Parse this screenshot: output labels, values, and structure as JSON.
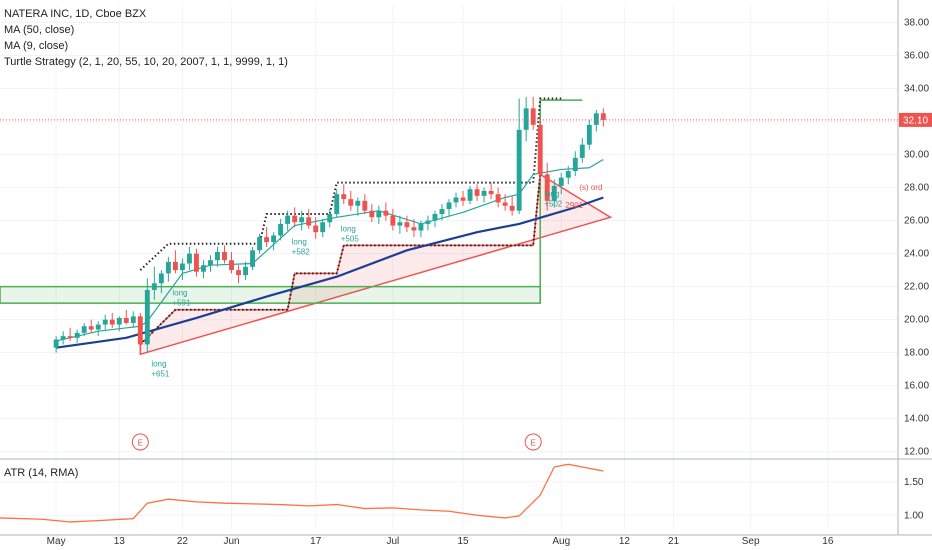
{
  "legend": {
    "symbol": "NATERA INC, 1D, Cboe BZX",
    "ma50": "MA (50, close)",
    "ma9": "MA (9, close)",
    "turtle": "Turtle Strategy (2, 1, 20, 55, 10, 20, 2007, 1, 1, 9999, 1, 1)"
  },
  "atr_legend": "ATR (14, RMA)",
  "last_price": "32.10",
  "earnings_markers": [
    "E",
    "E"
  ],
  "colors": {
    "up": "#26a69a",
    "down": "#ef5350",
    "ma50": "#1c3f94",
    "ma9": "#26a69a",
    "channel": "#222222",
    "green_box": "#4caf50",
    "red_box": "#ef5350",
    "atr": "#ff7043"
  },
  "chart_data": [
    {
      "type": "candlestick",
      "title": "NATERA INC, 1D, Cboe BZX",
      "y_ticks": [
        "12.00",
        "14.00",
        "16.00",
        "18.00",
        "20.00",
        "22.00",
        "24.00",
        "26.00",
        "28.00",
        "30.00",
        "32.00",
        "34.00",
        "36.00",
        "38.00"
      ],
      "ylim": [
        11.8,
        39.0
      ],
      "x_ticks": [
        "May",
        "13",
        "22",
        "Jun",
        "17",
        "Jul",
        "15",
        "Aug",
        "12",
        "21",
        "Sep",
        "16"
      ],
      "x_tick_index": [
        0,
        9,
        18,
        25,
        37,
        48,
        58,
        72,
        81,
        88,
        99,
        110
      ],
      "xlim": [
        -8,
        120
      ],
      "ohlc": [
        [
          18.3,
          19.0,
          18.0,
          18.8
        ],
        [
          18.8,
          19.3,
          18.5,
          19.0
        ],
        [
          19.0,
          19.5,
          18.7,
          18.9
        ],
        [
          18.9,
          19.4,
          18.6,
          19.2
        ],
        [
          19.2,
          19.8,
          19.0,
          19.6
        ],
        [
          19.6,
          20.0,
          19.2,
          19.4
        ],
        [
          19.4,
          19.9,
          19.0,
          19.7
        ],
        [
          19.7,
          20.3,
          19.4,
          20.0
        ],
        [
          20.0,
          20.4,
          19.5,
          19.7
        ],
        [
          19.7,
          20.2,
          19.3,
          20.1
        ],
        [
          20.1,
          20.6,
          19.7,
          19.8
        ],
        [
          19.8,
          20.5,
          19.5,
          20.2
        ],
        [
          20.2,
          20.4,
          18.2,
          18.5
        ],
        [
          18.5,
          22.5,
          18.0,
          21.8
        ],
        [
          21.8,
          23.2,
          21.2,
          22.2
        ],
        [
          22.2,
          23.0,
          21.6,
          22.8
        ],
        [
          22.8,
          23.8,
          22.3,
          23.5
        ],
        [
          23.5,
          24.2,
          22.8,
          23.0
        ],
        [
          23.0,
          23.7,
          22.4,
          23.4
        ],
        [
          23.4,
          24.4,
          23.0,
          24.0
        ],
        [
          24.0,
          24.3,
          22.6,
          22.9
        ],
        [
          22.9,
          23.6,
          22.5,
          23.3
        ],
        [
          23.3,
          23.9,
          22.9,
          23.6
        ],
        [
          23.6,
          24.4,
          23.2,
          24.1
        ],
        [
          24.1,
          24.5,
          23.4,
          23.6
        ],
        [
          23.6,
          24.1,
          22.8,
          23.0
        ],
        [
          23.0,
          23.3,
          22.2,
          22.7
        ],
        [
          22.7,
          23.5,
          22.4,
          23.2
        ],
        [
          23.2,
          24.4,
          23.0,
          24.2
        ],
        [
          24.2,
          25.2,
          24.0,
          25.0
        ],
        [
          25.0,
          25.6,
          24.4,
          24.7
        ],
        [
          24.7,
          25.3,
          24.2,
          25.1
        ],
        [
          25.1,
          26.1,
          24.8,
          25.8
        ],
        [
          25.8,
          26.6,
          25.4,
          26.3
        ],
        [
          26.3,
          26.8,
          25.6,
          25.9
        ],
        [
          25.9,
          26.6,
          25.4,
          26.2
        ],
        [
          26.2,
          26.7,
          25.5,
          25.7
        ],
        [
          25.7,
          26.2,
          24.9,
          25.3
        ],
        [
          25.3,
          26.1,
          25.0,
          25.9
        ],
        [
          25.9,
          26.7,
          25.6,
          26.4
        ],
        [
          26.4,
          27.9,
          26.2,
          27.6
        ],
        [
          27.6,
          28.2,
          27.0,
          27.3
        ],
        [
          27.3,
          27.8,
          26.6,
          26.9
        ],
        [
          26.9,
          27.4,
          26.3,
          27.2
        ],
        [
          27.2,
          27.6,
          26.4,
          26.6
        ],
        [
          26.6,
          27.0,
          25.9,
          26.2
        ],
        [
          26.2,
          26.9,
          25.8,
          26.6
        ],
        [
          26.6,
          27.1,
          26.0,
          26.3
        ],
        [
          26.3,
          26.7,
          25.4,
          25.7
        ],
        [
          25.7,
          26.3,
          25.2,
          25.9
        ],
        [
          25.9,
          26.3,
          25.3,
          25.6
        ],
        [
          25.6,
          26.1,
          25.0,
          25.4
        ],
        [
          25.4,
          26.0,
          25.0,
          25.8
        ],
        [
          25.8,
          26.3,
          25.4,
          26.0
        ],
        [
          26.0,
          26.6,
          25.6,
          26.4
        ],
        [
          26.4,
          27.0,
          26.0,
          26.7
        ],
        [
          26.7,
          27.3,
          26.3,
          27.1
        ],
        [
          27.1,
          27.7,
          26.8,
          27.4
        ],
        [
          27.4,
          27.8,
          26.9,
          27.2
        ],
        [
          27.2,
          28.1,
          27.0,
          27.9
        ],
        [
          27.9,
          28.2,
          27.2,
          27.5
        ],
        [
          27.5,
          28.0,
          27.1,
          27.8
        ],
        [
          27.8,
          28.3,
          27.3,
          27.6
        ],
        [
          27.6,
          28.0,
          26.8,
          27.1
        ],
        [
          27.1,
          27.6,
          26.6,
          26.9
        ],
        [
          26.9,
          27.5,
          26.3,
          26.6
        ],
        [
          26.6,
          33.4,
          26.4,
          31.5
        ],
        [
          31.5,
          33.5,
          30.8,
          32.8
        ],
        [
          32.8,
          33.5,
          31.5,
          31.8
        ],
        [
          31.8,
          32.2,
          28.3,
          28.8
        ],
        [
          28.8,
          29.5,
          26.6,
          27.2
        ],
        [
          27.2,
          28.5,
          26.8,
          28.1
        ],
        [
          28.1,
          28.9,
          27.6,
          28.6
        ],
        [
          28.6,
          29.3,
          28.2,
          29.0
        ],
        [
          29.0,
          30.2,
          28.7,
          29.8
        ],
        [
          29.8,
          31.0,
          29.5,
          30.6
        ],
        [
          30.6,
          32.1,
          30.3,
          31.8
        ],
        [
          31.8,
          32.7,
          31.4,
          32.5
        ],
        [
          32.5,
          32.8,
          31.7,
          32.1
        ]
      ],
      "ma50": [
        [
          0,
          18.3
        ],
        [
          10,
          18.9
        ],
        [
          20,
          20.1
        ],
        [
          30,
          21.4
        ],
        [
          40,
          22.6
        ],
        [
          50,
          24.2
        ],
        [
          60,
          25.3
        ],
        [
          66,
          25.8
        ],
        [
          70,
          26.3
        ],
        [
          74,
          26.8
        ],
        [
          78,
          27.4
        ]
      ],
      "ma9": [
        [
          0,
          18.7
        ],
        [
          6,
          19.3
        ],
        [
          12,
          19.6
        ],
        [
          13,
          19.9
        ],
        [
          18,
          22.8
        ],
        [
          22,
          23.3
        ],
        [
          28,
          23.4
        ],
        [
          34,
          25.7
        ],
        [
          40,
          26.2
        ],
        [
          46,
          26.6
        ],
        [
          52,
          25.8
        ],
        [
          58,
          26.5
        ],
        [
          64,
          27.4
        ],
        [
          66,
          27.6
        ],
        [
          68,
          28.8
        ],
        [
          72,
          29.1
        ],
        [
          76,
          29.2
        ],
        [
          78,
          29.7
        ]
      ],
      "upper_channel": [
        [
          12,
          23.0
        ],
        [
          16,
          24.6
        ],
        [
          29,
          24.6
        ],
        [
          30,
          26.4
        ],
        [
          39,
          26.4
        ],
        [
          40,
          28.3
        ],
        [
          68,
          28.3
        ],
        [
          69,
          33.4
        ],
        [
          72,
          33.4
        ]
      ],
      "lower_channel": [
        [
          12,
          18.5
        ],
        [
          17,
          20.6
        ],
        [
          33,
          20.6
        ],
        [
          34,
          22.8
        ],
        [
          40,
          22.8
        ],
        [
          41,
          24.5
        ],
        [
          68,
          24.5
        ],
        [
          69,
          28.8
        ]
      ],
      "trades": [
        {
          "label": "long",
          "result": "+651",
          "x": 13
        },
        {
          "label": "long",
          "result": "+591",
          "x": 16
        },
        {
          "label": "long",
          "result": "+582",
          "x": 33
        },
        {
          "label": "long",
          "result": "+505",
          "x": 40
        },
        {
          "label": "long",
          "result": "+502",
          "x": 69
        },
        {
          "label": "2901",
          "result": "",
          "x": 72
        },
        {
          "label": "(s) ord",
          "result": "",
          "x": 74
        }
      ]
    },
    {
      "type": "line",
      "title": "ATR (14, RMA)",
      "y_ticks": [
        "1.00",
        "1.50"
      ],
      "ylim": [
        0.78,
        1.78
      ],
      "values": [
        [
          -8,
          0.96
        ],
        [
          -2,
          0.94
        ],
        [
          2,
          0.9
        ],
        [
          6,
          0.92
        ],
        [
          11,
          0.95
        ],
        [
          13,
          1.18
        ],
        [
          16,
          1.24
        ],
        [
          20,
          1.2
        ],
        [
          24,
          1.18
        ],
        [
          28,
          1.17
        ],
        [
          32,
          1.16
        ],
        [
          36,
          1.14
        ],
        [
          40,
          1.16
        ],
        [
          44,
          1.1
        ],
        [
          48,
          1.11
        ],
        [
          52,
          1.08
        ],
        [
          56,
          1.06
        ],
        [
          60,
          1.0
        ],
        [
          64,
          0.96
        ],
        [
          66,
          0.99
        ],
        [
          69,
          1.3
        ],
        [
          71,
          1.72
        ],
        [
          73,
          1.76
        ],
        [
          75,
          1.72
        ],
        [
          77,
          1.68
        ],
        [
          78,
          1.66
        ]
      ]
    }
  ]
}
